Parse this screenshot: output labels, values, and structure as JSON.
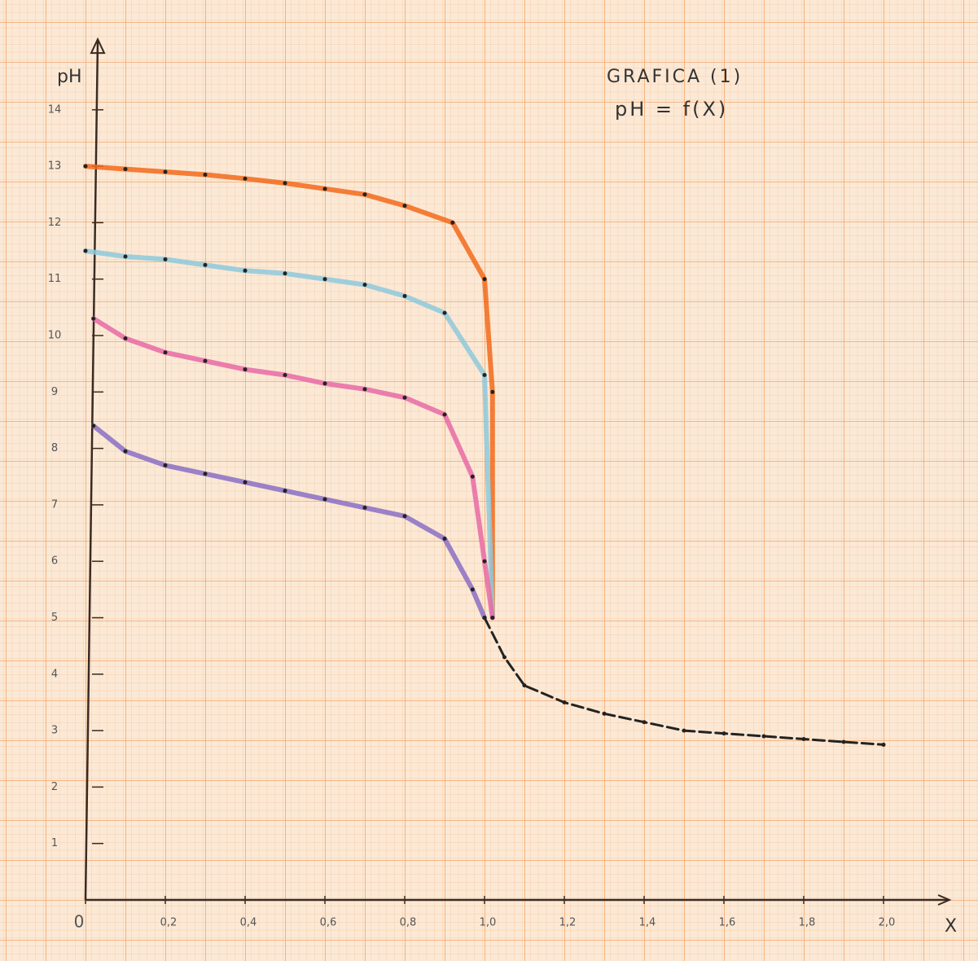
{
  "chart_data": {
    "type": "line",
    "title": "GRAFICA (1)",
    "subtitle": "pH = f(X)",
    "x_label": "X",
    "y_label": "pH",
    "xlim": [
      0,
      2.1
    ],
    "ylim": [
      0,
      14.5
    ],
    "xticks": [
      0,
      {
        "value": 0.2,
        "label": "0,2"
      },
      {
        "value": 0.4,
        "label": "0,4"
      },
      {
        "value": 0.6,
        "label": "0,6"
      },
      {
        "value": 0.8,
        "label": "0,8"
      },
      {
        "value": 1.0,
        "label": "1,0"
      },
      {
        "value": 1.2,
        "label": "1,2"
      },
      {
        "value": 1.4,
        "label": "1,4"
      },
      {
        "value": 1.6,
        "label": "1,6"
      },
      {
        "value": 1.8,
        "label": "1,8"
      },
      {
        "value": 2.0,
        "label": "2,0"
      }
    ],
    "yticks": [
      1,
      2,
      3,
      4,
      5,
      6,
      7,
      8,
      9,
      10,
      11,
      12,
      13,
      14
    ],
    "series": [
      {
        "color": "#f26a1b",
        "x": [
          0,
          0.1,
          0.2,
          0.3,
          0.4,
          0.5,
          0.6,
          0.7,
          0.8,
          0.92,
          1.0,
          1.02,
          1.02
        ],
        "values": [
          13.0,
          12.95,
          12.9,
          12.85,
          12.78,
          12.7,
          12.6,
          12.5,
          12.3,
          12.0,
          11.0,
          9.0,
          5.0
        ]
      },
      {
        "color": "#8ec9dc",
        "x": [
          0,
          0.1,
          0.2,
          0.3,
          0.4,
          0.5,
          0.6,
          0.7,
          0.8,
          0.9,
          1.0,
          1.02
        ],
        "values": [
          11.5,
          11.4,
          11.35,
          11.25,
          11.15,
          11.1,
          11.0,
          10.9,
          10.7,
          10.4,
          9.3,
          5.0
        ]
      },
      {
        "color": "#e86aa6",
        "x": [
          0.02,
          0.1,
          0.2,
          0.3,
          0.4,
          0.5,
          0.6,
          0.7,
          0.8,
          0.9,
          0.97,
          1.0,
          1.02
        ],
        "values": [
          10.3,
          9.95,
          9.7,
          9.55,
          9.4,
          9.3,
          9.15,
          9.05,
          8.9,
          8.6,
          7.5,
          6.0,
          5.0
        ]
      },
      {
        "color": "#8a6fc4",
        "x": [
          0.02,
          0.1,
          0.2,
          0.3,
          0.4,
          0.5,
          0.6,
          0.7,
          0.8,
          0.9,
          0.97,
          1.0
        ],
        "values": [
          8.4,
          7.95,
          7.7,
          7.55,
          7.4,
          7.25,
          7.1,
          6.95,
          6.8,
          6.4,
          5.5,
          5.0
        ]
      },
      {
        "color": "#222222",
        "dashed": true,
        "x": [
          1.0,
          1.05,
          1.1,
          1.2,
          1.3,
          1.4,
          1.5,
          1.6,
          1.7,
          1.8,
          1.9,
          2.0
        ],
        "values": [
          5.0,
          4.3,
          3.8,
          3.5,
          3.3,
          3.15,
          3.0,
          2.95,
          2.9,
          2.85,
          2.8,
          2.75
        ]
      }
    ]
  }
}
